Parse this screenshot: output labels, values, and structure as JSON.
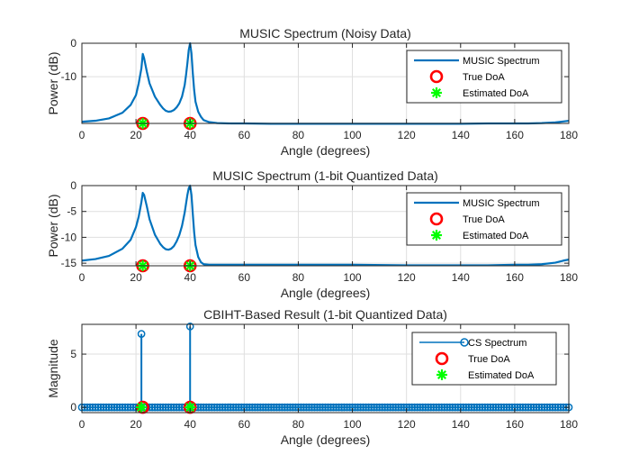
{
  "figure": {
    "background": "#ffffff"
  },
  "chart_data": [
    {
      "type": "line",
      "title": "MUSIC Spectrum (Noisy Data)",
      "xlabel": "Angle (degrees)",
      "ylabel": "Power (dB)",
      "xlim": [
        0,
        180
      ],
      "ylim": [
        -24,
        0
      ],
      "xticks": [
        0,
        20,
        40,
        60,
        80,
        100,
        120,
        140,
        160,
        180
      ],
      "yticks": [
        -10,
        0
      ],
      "grid": true,
      "legend_position": "top-right",
      "series": [
        {
          "name": "MUSIC Spectrum",
          "style": "line",
          "color": "#0072bd",
          "x": [
            0,
            5,
            10,
            15,
            18,
            20,
            21,
            22,
            22.5,
            23,
            24,
            25,
            27,
            29,
            30,
            31,
            32,
            33,
            34,
            35,
            36,
            37,
            38,
            38.5,
            39,
            39.5,
            40,
            40.5,
            41,
            41.5,
            42,
            43,
            44,
            45,
            47,
            50,
            55,
            60,
            70,
            80,
            100,
            120,
            140,
            150,
            160,
            165,
            170,
            175,
            178,
            180
          ],
          "y": [
            -23.5,
            -23.2,
            -22.5,
            -20.8,
            -18.5,
            -15.5,
            -12,
            -7.5,
            -3.2,
            -4.5,
            -8.5,
            -12,
            -16,
            -18.5,
            -19.5,
            -20.2,
            -20.5,
            -20.4,
            -20,
            -19.2,
            -18,
            -16,
            -12.5,
            -9.5,
            -6,
            -2,
            0,
            -3,
            -9,
            -14,
            -17.5,
            -20.5,
            -22,
            -23,
            -23.6,
            -23.9,
            -24,
            -24,
            -24.1,
            -24.1,
            -24.1,
            -24.1,
            -24.1,
            -24,
            -24,
            -24,
            -23.9,
            -23.7,
            -23.4,
            -23.2
          ]
        },
        {
          "name": "True DoA",
          "style": "marker-o",
          "color": "#ff0000",
          "x": [
            22.5,
            40
          ],
          "y": [
            -24,
            -24
          ]
        },
        {
          "name": "Estimated DoA",
          "style": "marker-star",
          "color": "#00ff00",
          "x": [
            22.5,
            40
          ],
          "y": [
            -24,
            -24
          ]
        }
      ]
    },
    {
      "type": "line",
      "title": "MUSIC Spectrum (1-bit Quantized Data)",
      "xlabel": "Angle (degrees)",
      "ylabel": "Power (dB)",
      "xlim": [
        0,
        180
      ],
      "ylim": [
        -15.5,
        0
      ],
      "xticks": [
        0,
        20,
        40,
        60,
        80,
        100,
        120,
        140,
        160,
        180
      ],
      "yticks": [
        -15,
        -10,
        -5,
        0
      ],
      "grid": true,
      "legend_position": "top-right",
      "series": [
        {
          "name": "MUSIC Spectrum",
          "style": "line",
          "color": "#0072bd",
          "x": [
            0,
            5,
            10,
            15,
            18,
            20,
            21,
            22,
            22.5,
            23,
            24,
            25,
            27,
            29,
            30,
            31,
            32,
            33,
            34,
            35,
            36,
            37,
            38,
            38.5,
            39,
            39.5,
            40,
            40.5,
            41,
            41.5,
            42,
            43,
            44,
            45,
            47,
            50,
            55,
            60,
            70,
            80,
            100,
            120,
            140,
            150,
            160,
            165,
            170,
            175,
            178,
            180
          ],
          "y": [
            -14.5,
            -14.2,
            -13.6,
            -12.2,
            -10.5,
            -8,
            -6,
            -3.2,
            -1.4,
            -1.8,
            -4,
            -6.5,
            -9.5,
            -11.3,
            -11.9,
            -12.3,
            -12.4,
            -12.2,
            -11.7,
            -10.8,
            -9.6,
            -7.8,
            -5.2,
            -3.5,
            -1.8,
            -0.5,
            0,
            -1.8,
            -5.5,
            -9,
            -11.5,
            -13.8,
            -14.8,
            -15.2,
            -15.3,
            -15.3,
            -15.3,
            -15.3,
            -15.3,
            -15.3,
            -15.3,
            -15.4,
            -15.4,
            -15.4,
            -15.3,
            -15.3,
            -15.2,
            -14.9,
            -14.5,
            -14.3
          ]
        },
        {
          "name": "True DoA",
          "style": "marker-o",
          "color": "#ff0000",
          "x": [
            22.5,
            40
          ],
          "y": [
            -15.5,
            -15.5
          ]
        },
        {
          "name": "Estimated DoA",
          "style": "marker-star",
          "color": "#00ff00",
          "x": [
            22.5,
            40
          ],
          "y": [
            -15.5,
            -15.5
          ]
        }
      ]
    },
    {
      "type": "scatter",
      "title": "CBIHT-Based Result (1-bit Quantized Data)",
      "xlabel": "Angle (degrees)",
      "ylabel": "Magnitude",
      "xlim": [
        0,
        180
      ],
      "ylim": [
        -0.5,
        7.8
      ],
      "xticks": [
        0,
        20,
        40,
        60,
        80,
        100,
        120,
        140,
        160,
        180
      ],
      "yticks": [
        0,
        5
      ],
      "grid": true,
      "legend_position": "top-right",
      "series": [
        {
          "name": "CS Spectrum",
          "style": "stem",
          "color": "#0072bd",
          "x_start": 0,
          "x_step": 1,
          "x_end": 180,
          "baseline": 0,
          "nonzero": [
            {
              "x": 22,
              "y": 6.9
            },
            {
              "x": 40,
              "y": 7.6
            }
          ]
        },
        {
          "name": "True DoA",
          "style": "marker-o",
          "color": "#ff0000",
          "x": [
            22.5,
            40
          ],
          "y": [
            0,
            0
          ]
        },
        {
          "name": "Estimated DoA",
          "style": "marker-star",
          "color": "#00ff00",
          "x": [
            22,
            40
          ],
          "y": [
            0,
            0
          ]
        }
      ]
    }
  ]
}
